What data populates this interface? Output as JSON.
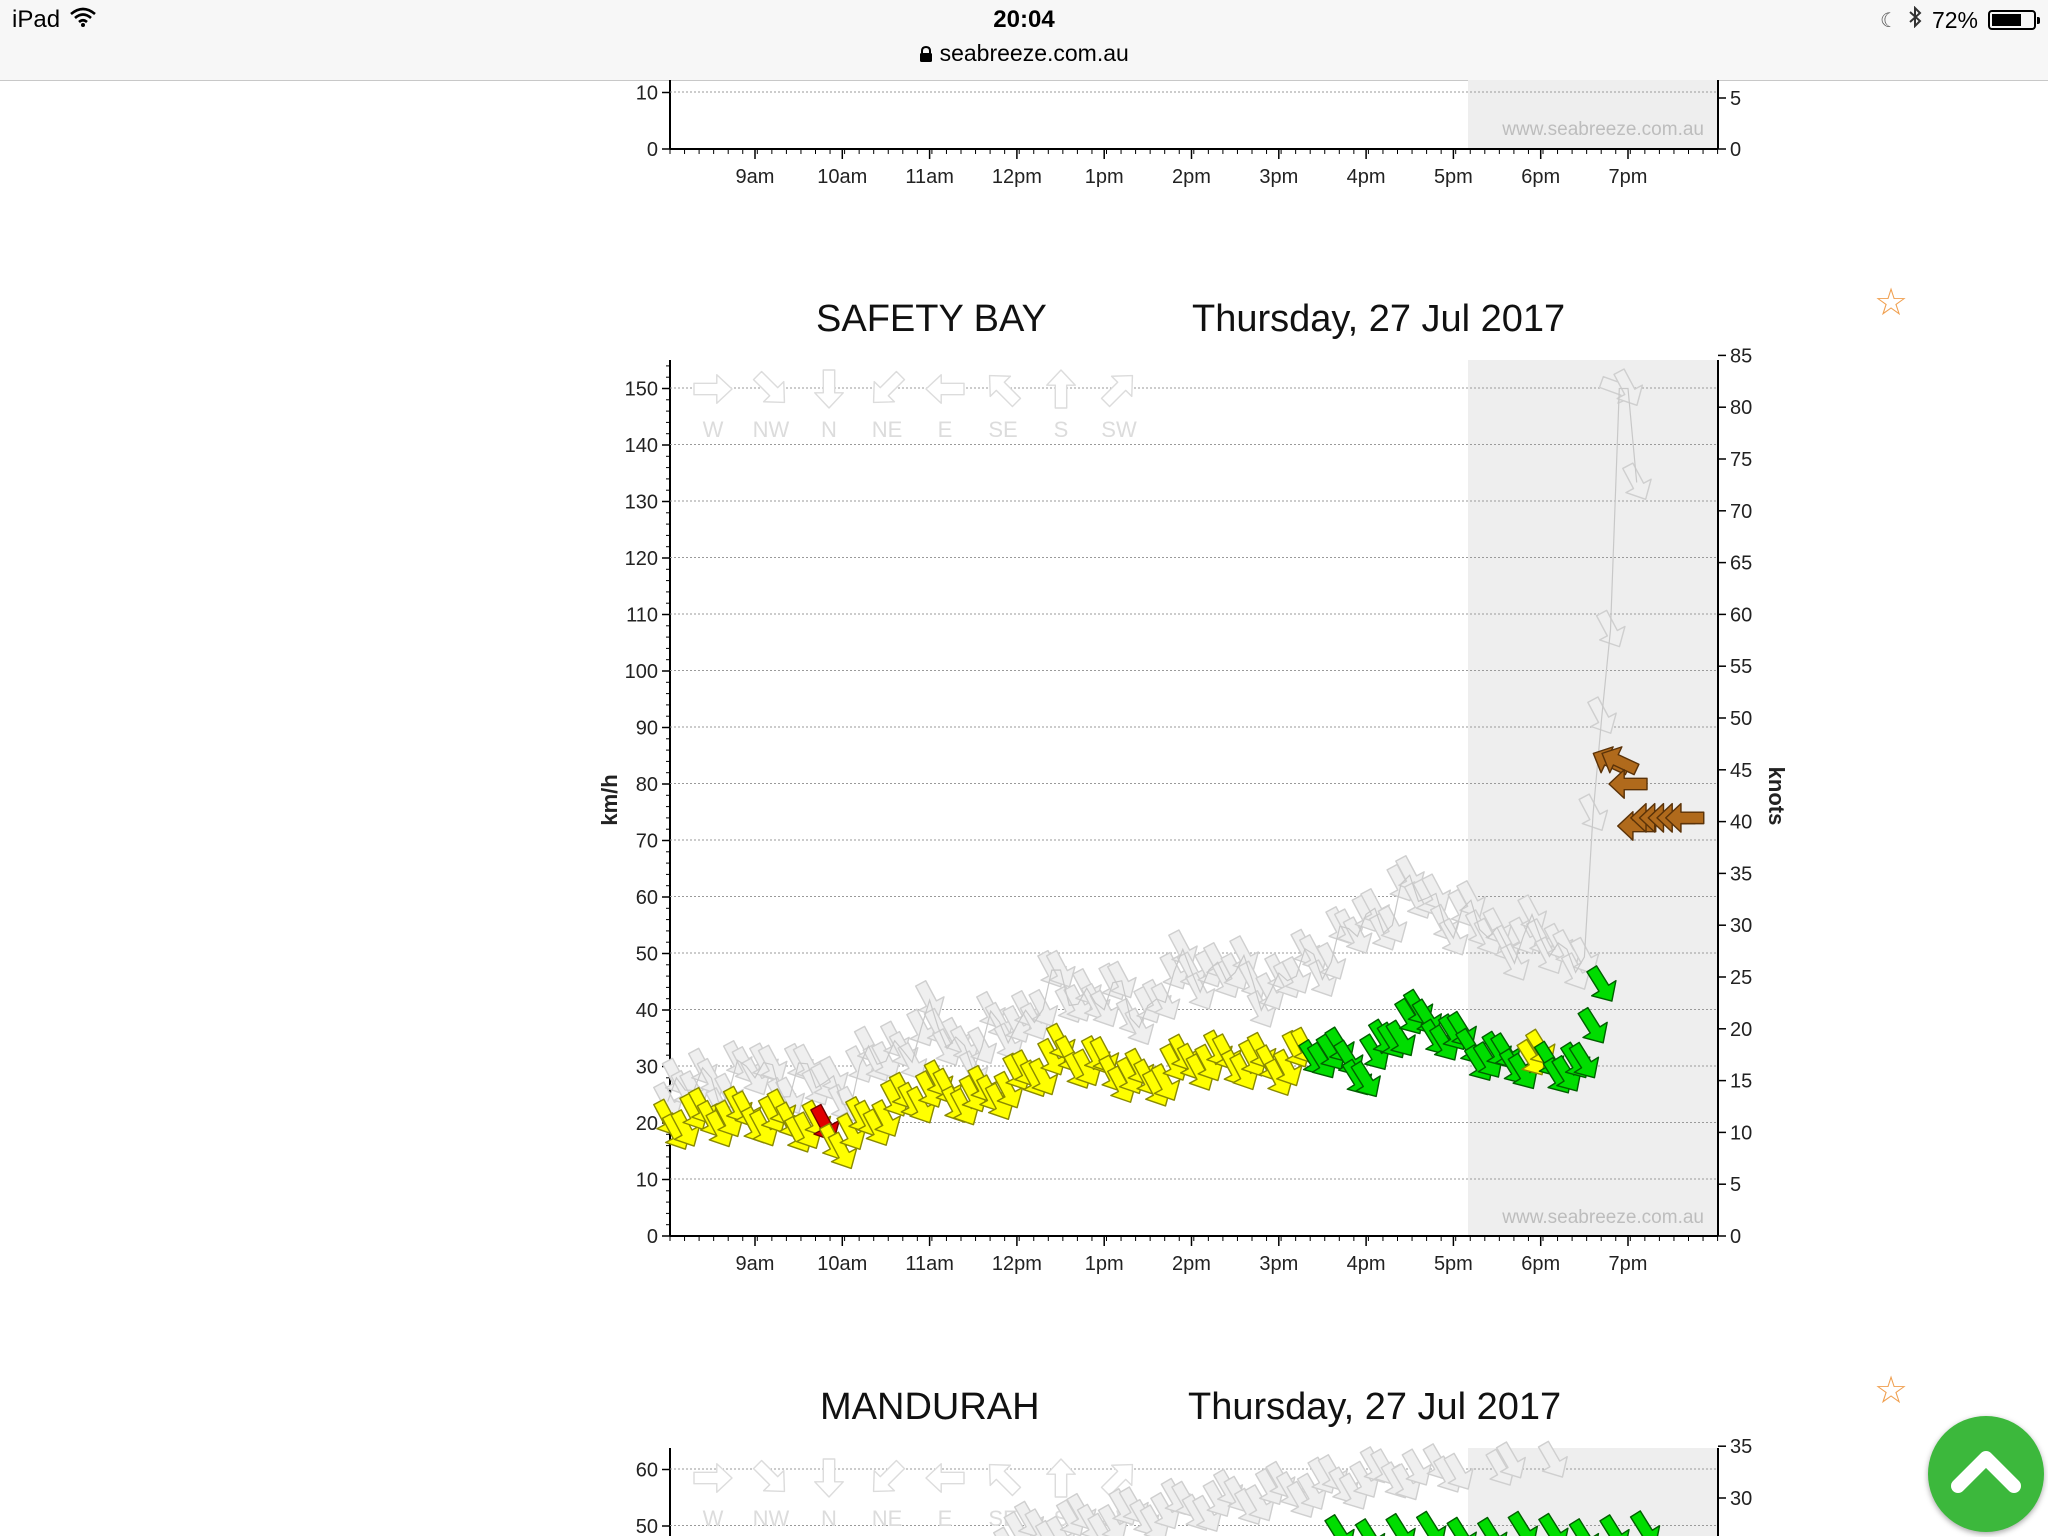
{
  "status_bar": {
    "device": "iPad",
    "time": "20:04",
    "url": "seabreeze.com.au",
    "battery": "72%",
    "battery_level": 0.72
  },
  "watermark": "www.seabreeze.com.au",
  "time_labels": [
    "9am",
    "10am",
    "11am",
    "12pm",
    "1pm",
    "2pm",
    "3pm",
    "4pm",
    "5pm",
    "6pm",
    "7pm"
  ],
  "direction_legend": [
    "W",
    "NW",
    "N",
    "NE",
    "E",
    "SE",
    "S",
    "SW"
  ],
  "axis_labels": {
    "left": "km/h",
    "right": "knots"
  },
  "colors": {
    "light": "#ffff00",
    "moderate": "#00dd00",
    "strong": "#b06a1c",
    "gust_grey": "#dcdcdc",
    "red": "#e00000",
    "night_shade": "#eeeeee"
  },
  "top_chart": {
    "left_ticks": [
      "10",
      "0"
    ],
    "right_ticks": [
      "5",
      "0"
    ]
  },
  "main_chart": {
    "location": "SAFETY BAY",
    "date": "Thursday, 27 Jul 2017",
    "left_ticks": [
      "150",
      "140",
      "130",
      "120",
      "110",
      "100",
      "90",
      "80",
      "70",
      "60",
      "50",
      "40",
      "30",
      "20",
      "10",
      "0"
    ],
    "right_ticks": [
      "85",
      "80",
      "75",
      "70",
      "65",
      "60",
      "55",
      "50",
      "45",
      "40",
      "35",
      "30",
      "25",
      "20",
      "15",
      "10",
      "5",
      "0"
    ]
  },
  "bottom_chart": {
    "location": "MANDURAH",
    "date": "Thursday, 27 Jul 2017",
    "left_ticks": [
      "60",
      "50"
    ],
    "right_ticks": [
      "35",
      "30"
    ]
  },
  "chart_data": {
    "type": "scatter",
    "title": "SAFETY BAY    Thursday, 27 Jul 2017",
    "xlabel": "",
    "ylabel": "km/h",
    "y2label": "knots",
    "ylim": [
      0,
      155
    ],
    "x_ticks": [
      "9am",
      "10am",
      "11am",
      "12pm",
      "1pm",
      "2pm",
      "3pm",
      "4pm",
      "5pm",
      "6pm",
      "7pm"
    ],
    "series": [
      {
        "name": "wind",
        "x": [
          8.0,
          8.5,
          9.0,
          9.5,
          10.0,
          10.5,
          11.0,
          11.5,
          12.0,
          12.5,
          13.0,
          13.5,
          14.0,
          14.5,
          15.0,
          15.5,
          16.0,
          16.5,
          17.0,
          17.5,
          18.0,
          18.5,
          19.0,
          19.5
        ],
        "values": [
          20,
          21,
          21,
          20,
          17,
          22,
          26,
          24,
          27,
          32,
          30,
          27,
          31,
          31,
          30,
          33,
          29,
          39,
          35,
          31,
          31,
          29,
          73,
          74
        ]
      },
      {
        "name": "gust",
        "x": [
          8.0,
          8.5,
          9.0,
          9.5,
          10.0,
          10.5,
          11.0,
          11.5,
          12.0,
          12.5,
          13.0,
          13.5,
          14.0,
          14.5,
          15.0,
          15.5,
          16.0,
          16.5,
          17.0,
          17.5,
          18.0,
          18.5,
          19.0,
          19.5
        ],
        "values": [
          25,
          27,
          29,
          28,
          26,
          32,
          37,
          33,
          38,
          44,
          42,
          40,
          48,
          46,
          44,
          50,
          55,
          61,
          57,
          53,
          52,
          50,
          150,
          80
        ]
      }
    ]
  }
}
